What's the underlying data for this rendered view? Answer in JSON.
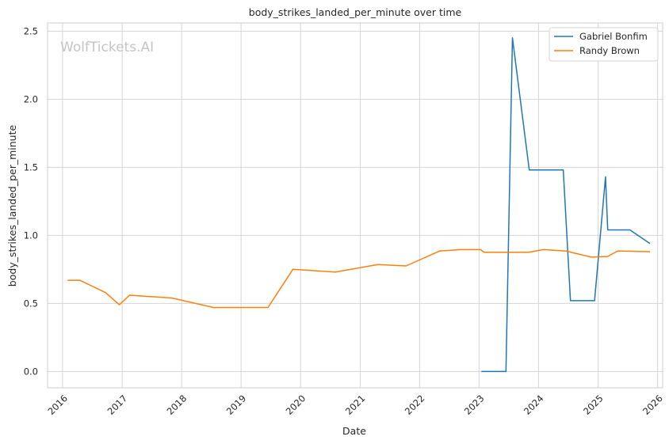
{
  "chart_data": {
    "type": "line",
    "title": "body_strikes_landed_per_minute over time",
    "xlabel": "Date",
    "ylabel": "body_strikes_landed_per_minute",
    "watermark": "WolfTickets.AI",
    "xlim": [
      "2015-10-01",
      "2026-02-01"
    ],
    "ylim": [
      -0.12,
      2.56
    ],
    "x_ticks": [
      "2016",
      "2017",
      "2018",
      "2019",
      "2020",
      "2021",
      "2022",
      "2023",
      "2024",
      "2025",
      "2026"
    ],
    "y_ticks": [
      "0.0",
      "0.5",
      "1.0",
      "1.5",
      "2.0",
      "2.5"
    ],
    "grid": true,
    "legend_position": "top-right",
    "series": [
      {
        "name": "Gabriel Bonfim",
        "color": "#1f77b4",
        "points": [
          [
            "2023-01-15",
            0.0
          ],
          [
            "2023-06-15",
            0.0
          ],
          [
            "2023-07-25",
            2.45
          ],
          [
            "2023-11-05",
            1.48
          ],
          [
            "2024-06-01",
            1.48
          ],
          [
            "2024-07-15",
            0.52
          ],
          [
            "2024-12-10",
            0.52
          ],
          [
            "2025-02-15",
            1.43
          ],
          [
            "2025-03-01",
            1.04
          ],
          [
            "2025-07-15",
            1.04
          ],
          [
            "2025-11-15",
            0.94
          ]
        ]
      },
      {
        "name": "Randy Brown",
        "color": "#ff7f0e",
        "points": [
          [
            "2016-02-01",
            0.67
          ],
          [
            "2016-04-15",
            0.67
          ],
          [
            "2016-09-20",
            0.58
          ],
          [
            "2016-12-15",
            0.49
          ],
          [
            "2017-02-15",
            0.56
          ],
          [
            "2017-11-01",
            0.54
          ],
          [
            "2018-07-15",
            0.47
          ],
          [
            "2019-06-15",
            0.47
          ],
          [
            "2019-11-15",
            0.75
          ],
          [
            "2020-08-01",
            0.73
          ],
          [
            "2021-04-20",
            0.785
          ],
          [
            "2021-10-10",
            0.775
          ],
          [
            "2022-05-05",
            0.885
          ],
          [
            "2022-09-10",
            0.895
          ],
          [
            "2023-01-10",
            0.895
          ],
          [
            "2023-02-01",
            0.875
          ],
          [
            "2023-11-01",
            0.875
          ],
          [
            "2024-02-01",
            0.895
          ],
          [
            "2024-06-15",
            0.885
          ],
          [
            "2024-11-20",
            0.84
          ],
          [
            "2025-03-01",
            0.845
          ],
          [
            "2025-05-01",
            0.885
          ],
          [
            "2025-11-15",
            0.88
          ]
        ]
      }
    ]
  }
}
